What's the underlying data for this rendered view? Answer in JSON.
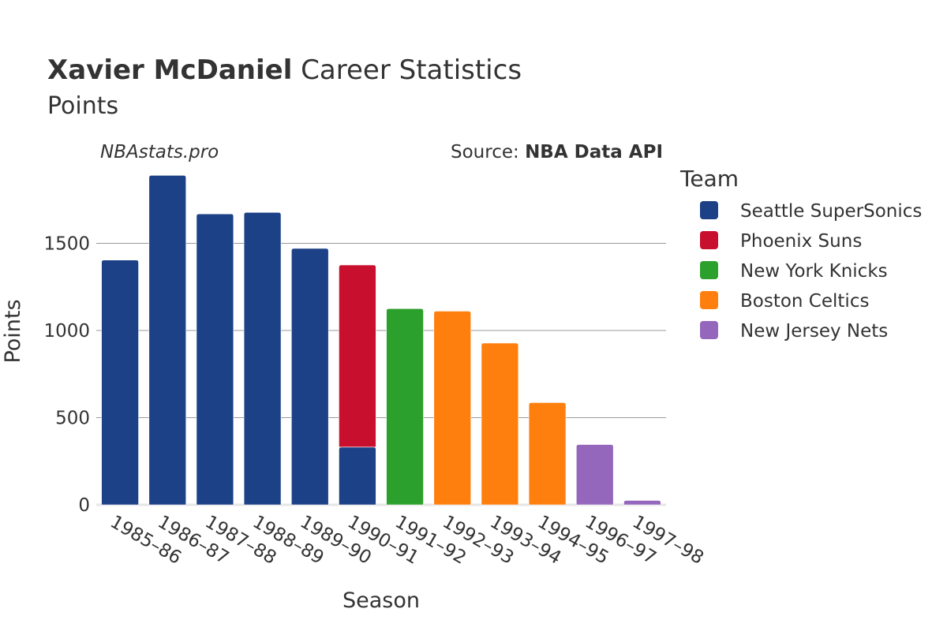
{
  "header": {
    "title_bold": "Xavier McDaniel",
    "title_rest": " Career Statistics",
    "subtitle": "Points"
  },
  "watermark": "NBAstats.pro",
  "source": {
    "prefix": "Source: ",
    "name": "NBA Data API"
  },
  "legend": {
    "title": "Team"
  },
  "colors": {
    "grid": "#999999",
    "axis_text": "#333333"
  },
  "chart_data": {
    "type": "bar",
    "stacked": true,
    "title": "Xavier McDaniel Career Statistics",
    "subtitle": "Points",
    "xlabel": "Season",
    "ylabel": "Points",
    "ylim": [
      0,
      1900
    ],
    "yticks": [
      0,
      500,
      1000,
      1500
    ],
    "ytick_labels": [
      "0",
      "500",
      "1000",
      "1500"
    ],
    "categories": [
      "1985–86",
      "1986–87",
      "1987–88",
      "1988–89",
      "1989–90",
      "1990–91",
      "1991–92",
      "1992–93",
      "1993–94",
      "1994–95",
      "1996–97",
      "1997–98"
    ],
    "series": [
      {
        "name": "Seattle SuperSonics",
        "color": "#1c4187",
        "values": [
          1404,
          1890,
          1669,
          1677,
          1471,
          331,
          0,
          0,
          0,
          0,
          0,
          0
        ]
      },
      {
        "name": "Phoenix Suns",
        "color": "#c8102e",
        "values": [
          0,
          0,
          0,
          0,
          0,
          1045,
          0,
          0,
          0,
          0,
          0,
          0
        ]
      },
      {
        "name": "New York Knicks",
        "color": "#2ca02c",
        "values": [
          0,
          0,
          0,
          0,
          0,
          0,
          1125,
          0,
          0,
          0,
          0,
          0
        ]
      },
      {
        "name": "Boston Celtics",
        "color": "#ff7f0e",
        "values": [
          0,
          0,
          0,
          0,
          0,
          0,
          0,
          1111,
          928,
          586,
          0,
          0
        ]
      },
      {
        "name": "New Jersey Nets",
        "color": "#9467bd",
        "values": [
          0,
          0,
          0,
          0,
          0,
          0,
          0,
          0,
          0,
          0,
          346,
          25
        ]
      }
    ]
  }
}
